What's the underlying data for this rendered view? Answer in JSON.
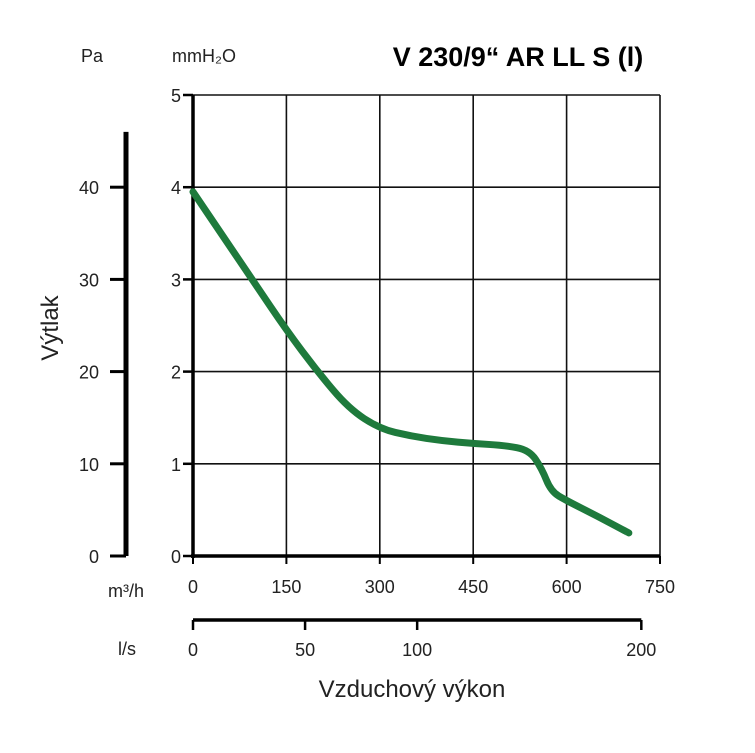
{
  "chart_data": {
    "type": "line",
    "title": "V 230/9“ AR LL S (l)",
    "xlabel": "Vzduchový výkon",
    "ylabel": "Výtlak",
    "x_unit_primary": "m³/h",
    "x_unit_secondary": "l/s",
    "y_unit_left": "Pa",
    "y_unit_right": "mmH₂O",
    "xlim": [
      0,
      750
    ],
    "ylim": [
      0,
      5
    ],
    "x_ticks": [
      "0",
      "150",
      "300",
      "450",
      "600",
      "750"
    ],
    "y_ticks_mmh2o": [
      "0",
      "1",
      "2",
      "3",
      "4",
      "5"
    ],
    "y_ticks_pa": [
      "0",
      "10",
      "20",
      "30",
      "40"
    ],
    "ls_ticks": [
      "0",
      "50",
      "100",
      "200"
    ],
    "grid": true,
    "series": [
      {
        "color": "#1e7a3c",
        "x": [
          0,
          50,
          100,
          150,
          200,
          250,
          300,
          350,
          400,
          450,
          500,
          540,
          560,
          575,
          600,
          650,
          700
        ],
        "y": [
          3.95,
          3.45,
          2.95,
          2.45,
          2.0,
          1.6,
          1.38,
          1.3,
          1.25,
          1.22,
          1.2,
          1.15,
          0.95,
          0.7,
          0.6,
          0.43,
          0.25
        ]
      }
    ]
  }
}
